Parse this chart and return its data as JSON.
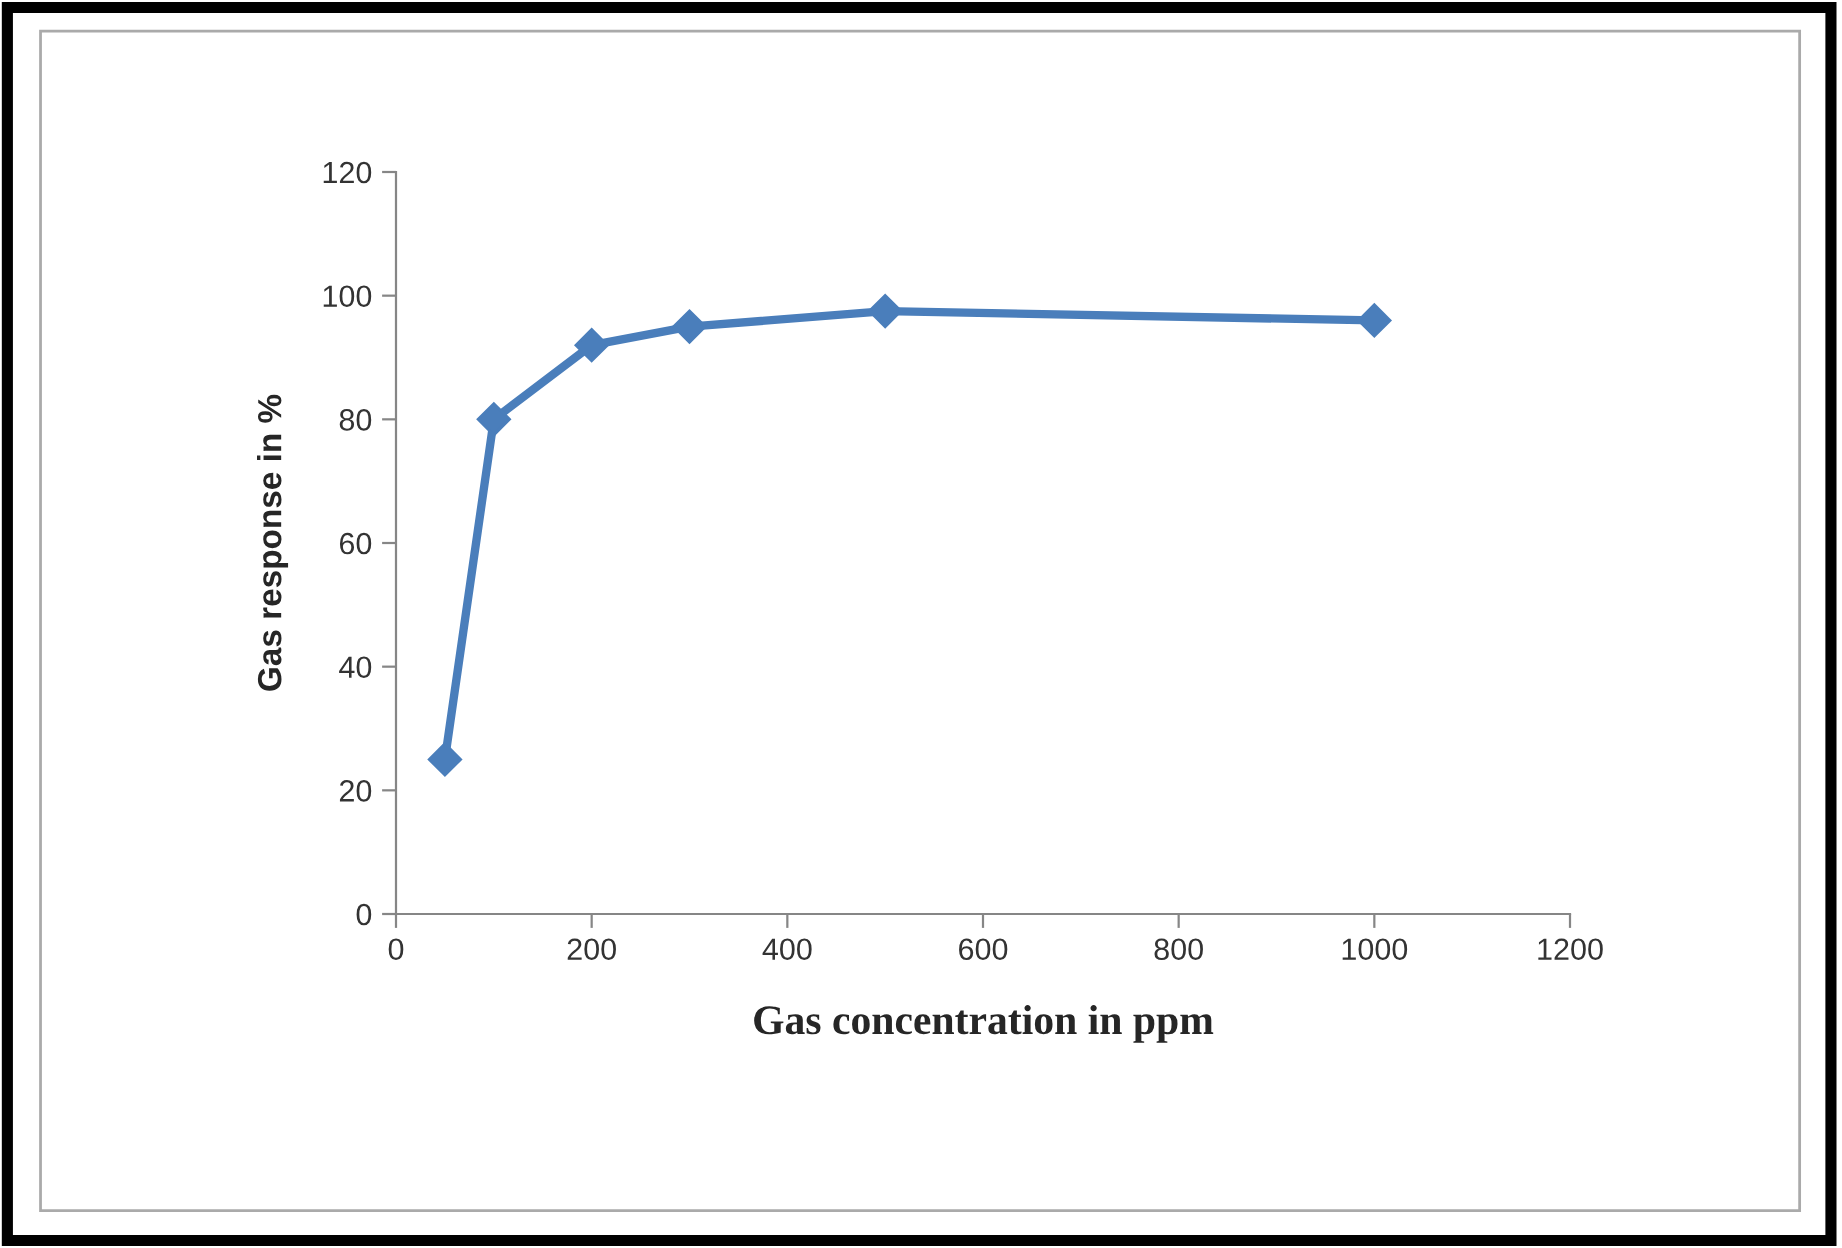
{
  "chart_data": {
    "type": "line",
    "xlabel": "Gas concentration in ppm",
    "ylabel": "Gas response in %",
    "x": [
      50,
      100,
      200,
      300,
      500,
      1000
    ],
    "series": [
      {
        "color": "#4a7ebb",
        "values": [
          25,
          80,
          92,
          95,
          97.5,
          96
        ]
      }
    ],
    "xlim": [
      0,
      1200
    ],
    "xticks": [
      0,
      200,
      400,
      600,
      800,
      1000,
      1200
    ],
    "ylim": [
      0,
      120
    ],
    "yticks": [
      0,
      20,
      40,
      60,
      80,
      100,
      120
    ],
    "marker": "diamond",
    "line_style": "solid",
    "grid": false,
    "legend": false
  }
}
